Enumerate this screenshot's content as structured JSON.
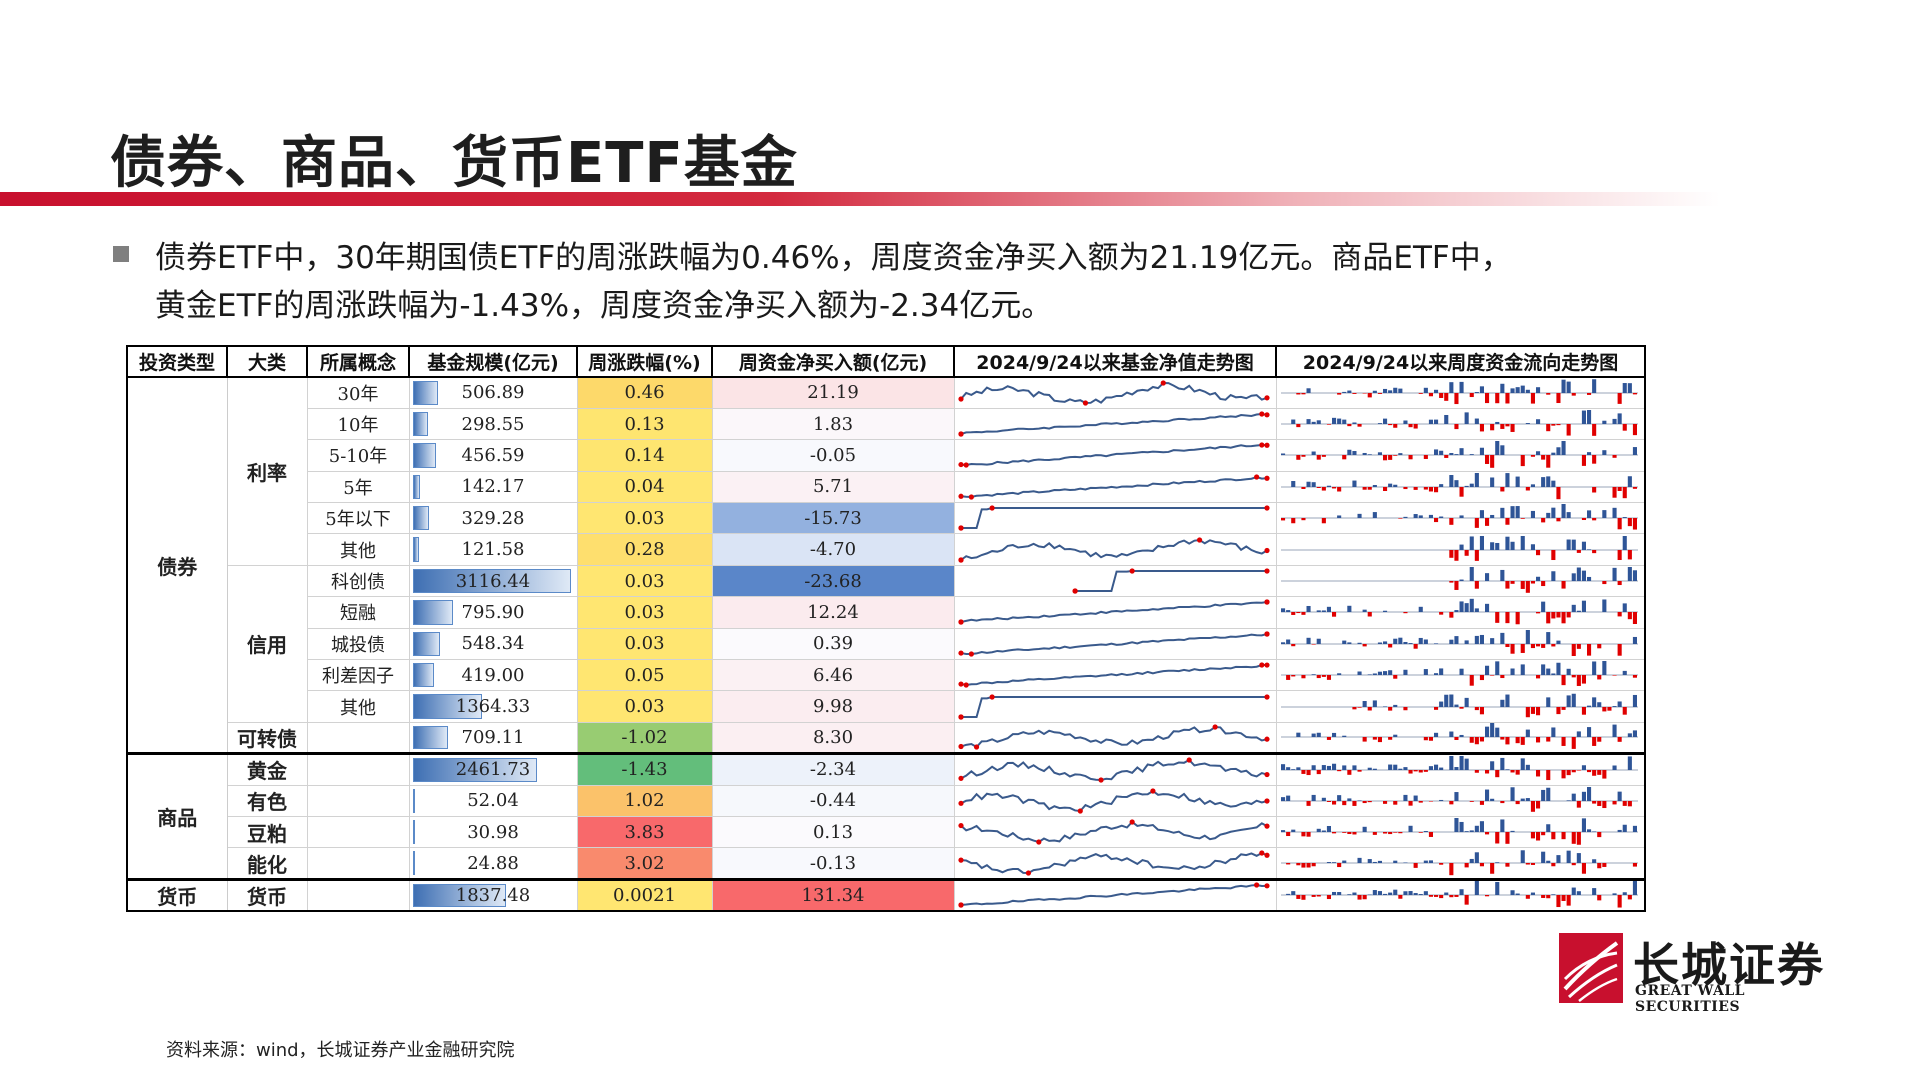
{
  "title": "债券、商品、货币ETF基金",
  "bullet": {
    "line1": "债券ETF中，30年期国债ETF的周涨跌幅为0.46%，周度资金净买入额为21.19亿元。商品ETF中，",
    "line2": "黄金ETF的周涨跌幅为-1.43%，周度资金净买入额为-2.34亿元。"
  },
  "table": {
    "headers": [
      "投资类型",
      "大类",
      "所属概念",
      "基金规模(亿元)",
      "周涨跌幅(%)",
      "周资金净买入额(亿元)",
      "2024/9/24以来基金净值走势图",
      "2024/9/24以来周度资金流向走势图"
    ],
    "rows": [
      {
        "type": "债券",
        "category": "利率",
        "concept": "30年",
        "scale": "506.89",
        "scale_v": 506.89,
        "change": "0.46",
        "change_color": "#fdd96a",
        "flow": "21.19",
        "flow_color": "#fbe4e6"
      },
      {
        "type": "",
        "category": "",
        "concept": "10年",
        "scale": "298.55",
        "scale_v": 298.55,
        "change": "0.13",
        "change_color": "#fee570",
        "flow": "1.83",
        "flow_color": "#fbf7fa"
      },
      {
        "type": "",
        "category": "",
        "concept": "5-10年",
        "scale": "456.59",
        "scale_v": 456.59,
        "change": "0.14",
        "change_color": "#fee570",
        "flow": "-0.05",
        "flow_color": "#f8f9fd"
      },
      {
        "type": "",
        "category": "",
        "concept": "5年",
        "scale": "142.17",
        "scale_v": 142.17,
        "change": "0.04",
        "change_color": "#ffe671",
        "flow": "5.71",
        "flow_color": "#fbf1f4"
      },
      {
        "type": "",
        "category": "",
        "concept": "5年以下",
        "scale": "329.28",
        "scale_v": 329.28,
        "change": "0.03",
        "change_color": "#ffe671",
        "flow": "-15.73",
        "flow_color": "#93b1df"
      },
      {
        "type": "",
        "category": "",
        "concept": "其他",
        "scale": "121.58",
        "scale_v": 121.58,
        "change": "0.28",
        "change_color": "#fedf6e",
        "flow": "-4.70",
        "flow_color": "#dae4f5"
      },
      {
        "type": "",
        "category": "信用",
        "concept": "科创债",
        "scale": "3116.44",
        "scale_v": 3116.44,
        "change": "0.03",
        "change_color": "#ffe671",
        "flow": "-23.68",
        "flow_color": "#5a86c9"
      },
      {
        "type": "",
        "category": "",
        "concept": "短融",
        "scale": "795.90",
        "scale_v": 795.9,
        "change": "0.03",
        "change_color": "#ffe671",
        "flow": "12.24",
        "flow_color": "#fbebee"
      },
      {
        "type": "",
        "category": "",
        "concept": "城投债",
        "scale": "548.34",
        "scale_v": 548.34,
        "change": "0.03",
        "change_color": "#ffe671",
        "flow": "0.39",
        "flow_color": "#fbfafd"
      },
      {
        "type": "",
        "category": "",
        "concept": "利差因子",
        "scale": "419.00",
        "scale_v": 419.0,
        "change": "0.05",
        "change_color": "#ffe671",
        "flow": "6.46",
        "flow_color": "#fbf1f3"
      },
      {
        "type": "",
        "category": "",
        "concept": "其他",
        "scale": "1364.33",
        "scale_v": 1364.33,
        "change": "0.03",
        "change_color": "#ffe671",
        "flow": "9.98",
        "flow_color": "#fbedf0"
      },
      {
        "type": "",
        "category": "可转债",
        "concept": "",
        "scale": "709.11",
        "scale_v": 709.11,
        "change": "-1.02",
        "change_color": "#98cc72",
        "flow": "8.30",
        "flow_color": "#fbeff2"
      },
      {
        "type": "商品",
        "category": "黄金",
        "concept": "",
        "scale": "2461.73",
        "scale_v": 2461.73,
        "change": "-1.43",
        "change_color": "#63be7b",
        "flow": "-2.34",
        "flow_color": "#edf2fa"
      },
      {
        "type": "",
        "category": "有色",
        "concept": "",
        "scale": "52.04",
        "scale_v": 52.04,
        "change": "1.02",
        "change_color": "#fbc26a",
        "flow": "-0.44",
        "flow_color": "#f6f8fc"
      },
      {
        "type": "",
        "category": "豆粕",
        "concept": "",
        "scale": "30.98",
        "scale_v": 30.98,
        "change": "3.83",
        "change_color": "#f8696b",
        "flow": "0.13",
        "flow_color": "#fbfafd"
      },
      {
        "type": "",
        "category": "能化",
        "concept": "",
        "scale": "24.88",
        "scale_v": 24.88,
        "change": "3.02",
        "change_color": "#f98a6d",
        "flow": "-0.13",
        "flow_color": "#f8f9fd"
      },
      {
        "type": "货币",
        "category": "货币",
        "concept": "",
        "scale": "1837.48",
        "scale_v": 1837.48,
        "change": "0.0021",
        "change_color": "#ffe671",
        "flow": "131.34",
        "flow_color": "#f8696b"
      }
    ]
  },
  "colors": {
    "brand_red": "#c8102e",
    "line": "#3a5a8c",
    "bar_pos": "#2f5597",
    "bar_neg": "#e00000"
  },
  "logo": {
    "cn": "长城证券",
    "en": "GREAT WALL SECURITIES"
  },
  "source": "资料来源：wind，长城证券产业金融研究院"
}
